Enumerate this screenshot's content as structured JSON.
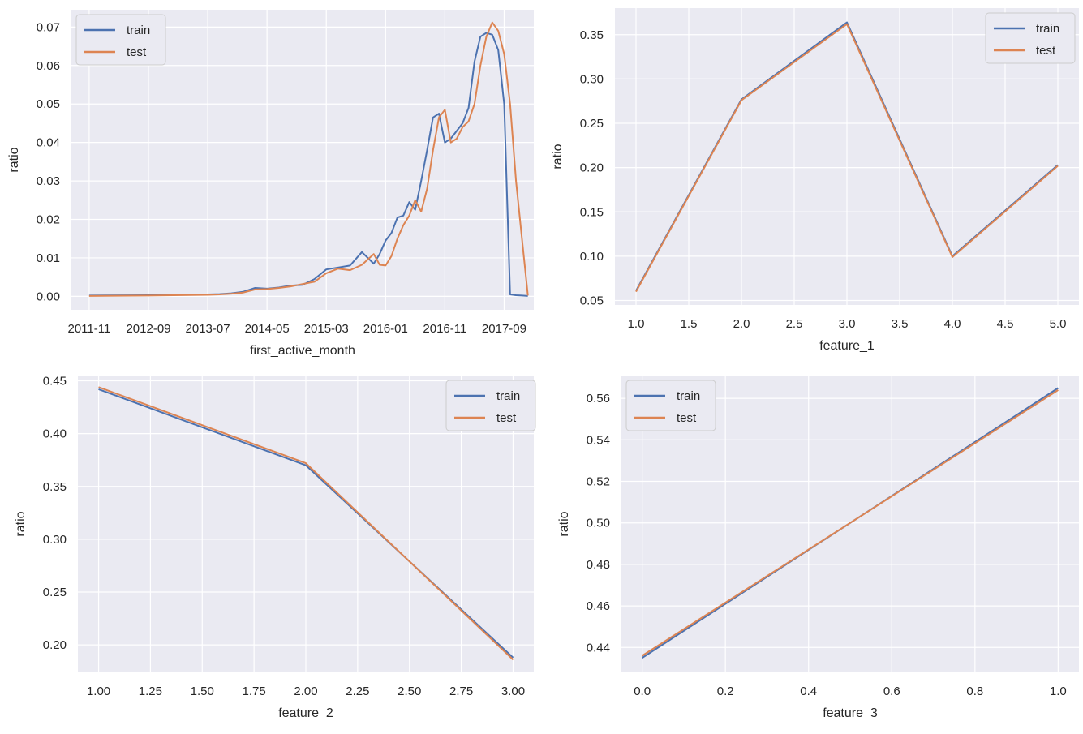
{
  "colors": {
    "train": "#4c72b0",
    "test": "#dd8452"
  },
  "chart_data": [
    {
      "type": "line",
      "xlabel": "first_active_month",
      "ylabel": "ratio",
      "x_tick_labels": [
        "2011-11",
        "2012-09",
        "2013-07",
        "2014-05",
        "2015-03",
        "2016-01",
        "2016-11",
        "2017-09"
      ],
      "x_tick_indices": [
        0,
        10,
        20,
        30,
        40,
        50,
        60,
        70
      ],
      "xlim": [
        -3,
        75
      ],
      "ylim": [
        -0.0035,
        0.0745
      ],
      "yticks": [
        0.0,
        0.01,
        0.02,
        0.03,
        0.04,
        0.05,
        0.06,
        0.07
      ],
      "ytick_labels": [
        "0.00",
        "0.01",
        "0.02",
        "0.03",
        "0.04",
        "0.05",
        "0.06",
        "0.07"
      ],
      "legend": [
        "train",
        "test"
      ],
      "legend_position": "upper left",
      "series": [
        {
          "name": "train",
          "x": [
            0,
            10,
            20,
            22,
            24,
            26,
            28,
            30,
            32,
            34,
            36,
            38,
            40,
            42,
            44,
            46,
            48,
            49,
            50,
            51,
            52,
            53,
            54,
            55,
            56,
            57,
            58,
            59,
            60,
            61,
            62,
            63,
            64,
            65,
            66,
            67,
            68,
            69,
            70,
            71,
            72,
            73,
            74
          ],
          "y": [
            0.0002,
            0.0003,
            0.0005,
            0.0006,
            0.0008,
            0.0012,
            0.0022,
            0.002,
            0.0023,
            0.0028,
            0.003,
            0.0045,
            0.007,
            0.0075,
            0.008,
            0.0115,
            0.0085,
            0.011,
            0.0145,
            0.0165,
            0.0205,
            0.021,
            0.0245,
            0.0225,
            0.03,
            0.038,
            0.0465,
            0.0475,
            0.04,
            0.041,
            0.043,
            0.045,
            0.049,
            0.061,
            0.0675,
            0.0685,
            0.068,
            0.064,
            0.05,
            0.0005,
            0.0003,
            0.0002,
            0.0001
          ]
        },
        {
          "name": "test",
          "x": [
            0,
            10,
            20,
            22,
            24,
            26,
            28,
            30,
            32,
            34,
            36,
            38,
            40,
            42,
            44,
            46,
            48,
            49,
            50,
            51,
            52,
            53,
            54,
            55,
            56,
            57,
            58,
            59,
            60,
            61,
            62,
            63,
            64,
            65,
            66,
            67,
            68,
            69,
            70,
            71,
            72,
            73,
            74
          ],
          "y": [
            0.0001,
            0.0002,
            0.0004,
            0.0005,
            0.0007,
            0.001,
            0.0018,
            0.0019,
            0.0022,
            0.0026,
            0.0032,
            0.0038,
            0.006,
            0.0072,
            0.0068,
            0.0082,
            0.011,
            0.0082,
            0.008,
            0.0105,
            0.015,
            0.0185,
            0.021,
            0.025,
            0.022,
            0.028,
            0.038,
            0.0465,
            0.0485,
            0.04,
            0.041,
            0.044,
            0.0455,
            0.05,
            0.06,
            0.0675,
            0.0712,
            0.069,
            0.063,
            0.05,
            0.03,
            0.015,
            0.0002
          ]
        }
      ]
    },
    {
      "type": "line",
      "xlabel": "feature_1",
      "ylabel": "ratio",
      "xticks": [
        1.0,
        1.5,
        2.0,
        2.5,
        3.0,
        3.5,
        4.0,
        4.5,
        5.0
      ],
      "xtick_labels": [
        "1.0",
        "1.5",
        "2.0",
        "2.5",
        "3.0",
        "3.5",
        "4.0",
        "4.5",
        "5.0"
      ],
      "xlim": [
        0.8,
        5.2
      ],
      "ylim": [
        0.045,
        0.38
      ],
      "yticks": [
        0.05,
        0.1,
        0.15,
        0.2,
        0.25,
        0.3,
        0.35
      ],
      "ytick_labels": [
        "0.05",
        "0.10",
        "0.15",
        "0.20",
        "0.25",
        "0.30",
        "0.35"
      ],
      "legend": [
        "train",
        "test"
      ],
      "legend_position": "upper right",
      "series": [
        {
          "name": "train",
          "x": [
            1,
            2,
            3,
            4,
            5
          ],
          "y": [
            0.061,
            0.277,
            0.364,
            0.1,
            0.203
          ]
        },
        {
          "name": "test",
          "x": [
            1,
            2,
            3,
            4,
            5
          ],
          "y": [
            0.06,
            0.276,
            0.362,
            0.099,
            0.202
          ]
        }
      ]
    },
    {
      "type": "line",
      "xlabel": "feature_2",
      "ylabel": "ratio",
      "xticks": [
        1.0,
        1.25,
        1.5,
        1.75,
        2.0,
        2.25,
        2.5,
        2.75,
        3.0
      ],
      "xtick_labels": [
        "1.00",
        "1.25",
        "1.50",
        "1.75",
        "2.00",
        "2.25",
        "2.50",
        "2.75",
        "3.00"
      ],
      "xlim": [
        0.9,
        3.1
      ],
      "ylim": [
        0.174,
        0.455
      ],
      "yticks": [
        0.2,
        0.25,
        0.3,
        0.35,
        0.4,
        0.45
      ],
      "ytick_labels": [
        "0.20",
        "0.25",
        "0.30",
        "0.35",
        "0.40",
        "0.45"
      ],
      "legend": [
        "train",
        "test"
      ],
      "legend_position": "upper right",
      "series": [
        {
          "name": "train",
          "x": [
            1,
            2,
            3
          ],
          "y": [
            0.442,
            0.37,
            0.188
          ]
        },
        {
          "name": "test",
          "x": [
            1,
            2,
            3
          ],
          "y": [
            0.444,
            0.372,
            0.186
          ]
        }
      ]
    },
    {
      "type": "line",
      "xlabel": "feature_3",
      "ylabel": "ratio",
      "xticks": [
        0.0,
        0.2,
        0.4,
        0.6,
        0.8,
        1.0
      ],
      "xtick_labels": [
        "0.0",
        "0.2",
        "0.4",
        "0.6",
        "0.8",
        "1.0"
      ],
      "xlim": [
        -0.05,
        1.05
      ],
      "ylim": [
        0.428,
        0.571
      ],
      "yticks": [
        0.44,
        0.46,
        0.48,
        0.5,
        0.52,
        0.54,
        0.56
      ],
      "ytick_labels": [
        "0.44",
        "0.46",
        "0.48",
        "0.50",
        "0.52",
        "0.54",
        "0.56"
      ],
      "legend": [
        "train",
        "test"
      ],
      "legend_position": "upper left",
      "series": [
        {
          "name": "train",
          "x": [
            0,
            1
          ],
          "y": [
            0.435,
            0.565
          ]
        },
        {
          "name": "test",
          "x": [
            0,
            1
          ],
          "y": [
            0.436,
            0.564
          ]
        }
      ]
    }
  ]
}
